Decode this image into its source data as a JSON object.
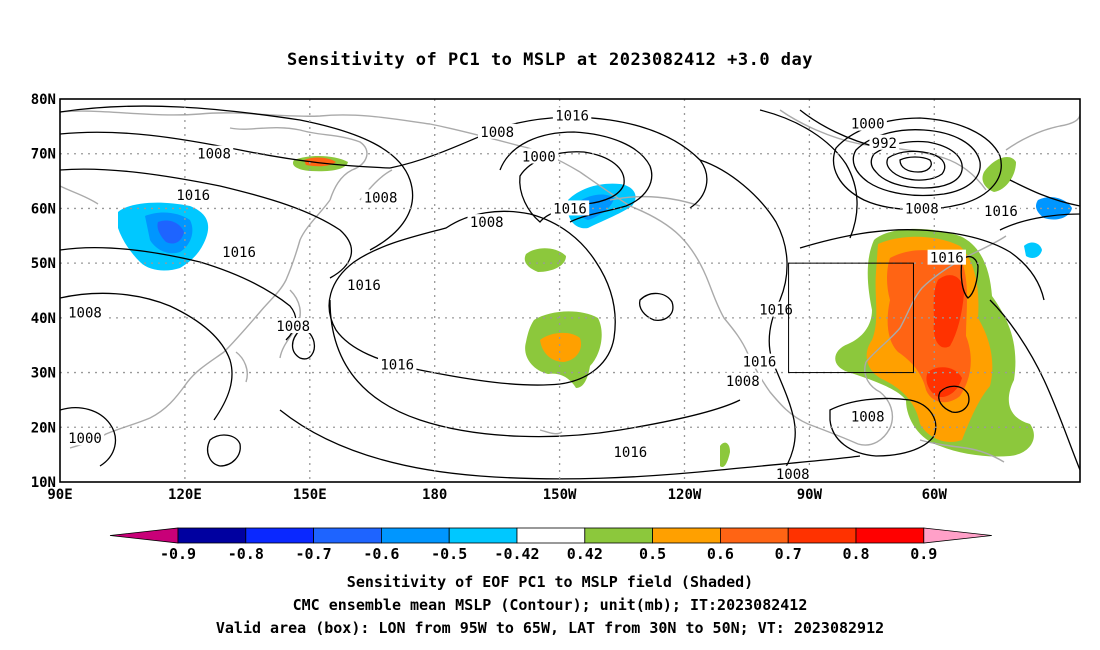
{
  "title": "Sensitivity of PC1 to MSLP at 2023082412 +3.0 day",
  "map": {
    "lat_labels": [
      "80N",
      "70N",
      "60N",
      "50N",
      "40N",
      "30N",
      "20N",
      "10N"
    ],
    "lon_labels": [
      "90E",
      "120E",
      "150E",
      "180",
      "150W",
      "120W",
      "90W",
      "60W"
    ],
    "grid": true
  },
  "contours": {
    "labels": [
      {
        "text": "1008",
        "lon": 127,
        "lat": 70
      },
      {
        "text": "1016",
        "lon": 122,
        "lat": 62.5
      },
      {
        "text": "1016",
        "lon": 133,
        "lat": 52
      },
      {
        "text": "1008",
        "lon": 96,
        "lat": 41
      },
      {
        "text": "1008",
        "lon": 146,
        "lat": 38.5
      },
      {
        "text": "1000",
        "lon": 96,
        "lat": 18
      },
      {
        "text": "1008",
        "lon": 167,
        "lat": 62
      },
      {
        "text": "1016",
        "lon": 163,
        "lat": 46
      },
      {
        "text": "1016",
        "lon": 171,
        "lat": 31.5
      },
      {
        "text": "1008",
        "lon": 195,
        "lat": 74
      },
      {
        "text": "1000",
        "lon": 205,
        "lat": 69.5
      },
      {
        "text": "1016",
        "lon": 213,
        "lat": 77
      },
      {
        "text": "1008",
        "lon": 192.5,
        "lat": 57.5
      },
      {
        "text": "1016",
        "lon": 212.5,
        "lat": 60
      },
      {
        "text": "1016",
        "lon": 227,
        "lat": 15.5
      },
      {
        "text": "1008",
        "lon": 254,
        "lat": 28.5
      },
      {
        "text": "1016",
        "lon": 262,
        "lat": 41.5
      },
      {
        "text": "1016",
        "lon": 258,
        "lat": 32
      },
      {
        "text": "1008",
        "lon": 266,
        "lat": 11.5
      },
      {
        "text": "1000",
        "lon": 284,
        "lat": 75.5
      },
      {
        "text": "992",
        "lon": 288,
        "lat": 72
      },
      {
        "text": "1008",
        "lon": 297,
        "lat": 60
      },
      {
        "text": "1016",
        "lon": 303,
        "lat": 51
      },
      {
        "text": "1016",
        "lon": 316,
        "lat": 59.5
      },
      {
        "text": "1008",
        "lon": 284,
        "lat": 22
      }
    ]
  },
  "valid_box": {
    "lon_min": -95,
    "lon_max": -65,
    "lat_min": 30,
    "lat_max": 50
  },
  "colorbar": {
    "labels": [
      "-0.9",
      "-0.8",
      "-0.7",
      "-0.6",
      "-0.5",
      "-0.42",
      "0.42",
      "0.5",
      "0.6",
      "0.7",
      "0.8",
      "0.9"
    ],
    "colors": [
      "#0000a0",
      "#0a28ff",
      "#1e64ff",
      "#0096ff",
      "#00c8ff",
      "#ffffff",
      "#8cc83c",
      "#ffa000",
      "#ff6414",
      "#ff3200",
      "#ff0000"
    ],
    "low_end_color": "#c80078",
    "high_end_color": "#ffa0c8"
  },
  "captions": {
    "line1": "Sensitivity of EOF PC1 to MSLP field (Shaded)",
    "line2": "CMC ensemble mean MSLP (Contour); unit(mb); IT:2023082412",
    "line3": "Valid area (box): LON from 95W to 65W, LAT from 30N to 50N; VT: 2023082912"
  }
}
